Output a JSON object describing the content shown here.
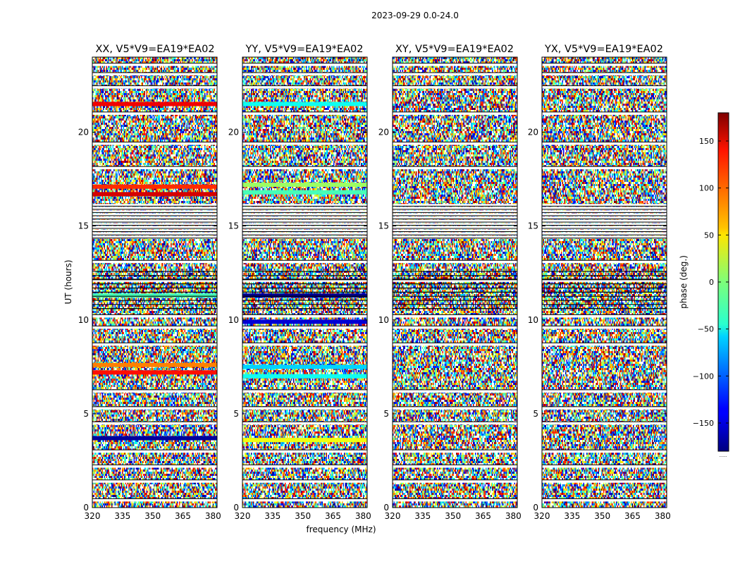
{
  "chart_data": {
    "type": "heatmap",
    "suptitle": "2023-09-29 0.0-24.0",
    "xlabel": "frequency (MHz)",
    "ylabel": "UT (hours)",
    "xlim": [
      320,
      382
    ],
    "ylim": [
      0,
      24
    ],
    "xticks": [
      320,
      335,
      350,
      365,
      380
    ],
    "yticks": [
      0,
      5,
      10,
      15,
      20
    ],
    "colorbar": {
      "label": "phase (deg.)",
      "range": [
        -180,
        180
      ],
      "ticks": [
        150,
        100,
        50,
        0,
        -50,
        -100,
        -150
      ],
      "tick_labels": [
        "150",
        "100",
        "50",
        "0",
        "−50",
        "−100",
        "−150"
      ],
      "extra_label": "......"
    },
    "panels": [
      {
        "title": "XX, V5*V9=EA19*EA02",
        "bands": [
          {
            "t": 21.5,
            "value": 140
          },
          {
            "t": 17.1,
            "value": 120
          },
          {
            "t": 16.7,
            "value": 150
          },
          {
            "t": 11.3,
            "value": -20
          },
          {
            "t": 7.6,
            "value": 90
          },
          {
            "t": 7.2,
            "value": 130
          },
          {
            "t": 3.7,
            "value": -170
          }
        ]
      },
      {
        "title": "YY, V5*V9=EA19*EA02",
        "bands": [
          {
            "t": 21.5,
            "value": -40
          },
          {
            "t": 17.2,
            "value": 10
          },
          {
            "t": 16.8,
            "value": -20
          },
          {
            "t": 11.3,
            "value": -175
          },
          {
            "t": 9.9,
            "value": -150
          },
          {
            "t": 7.5,
            "value": -60
          },
          {
            "t": 7.0,
            "value": -40
          },
          {
            "t": 3.6,
            "value": 40
          }
        ]
      },
      {
        "title": "XY, V5*V9=EA19*EA02",
        "bands": []
      },
      {
        "title": "YX, V5*V9=EA19*EA02",
        "bands": []
      }
    ]
  }
}
